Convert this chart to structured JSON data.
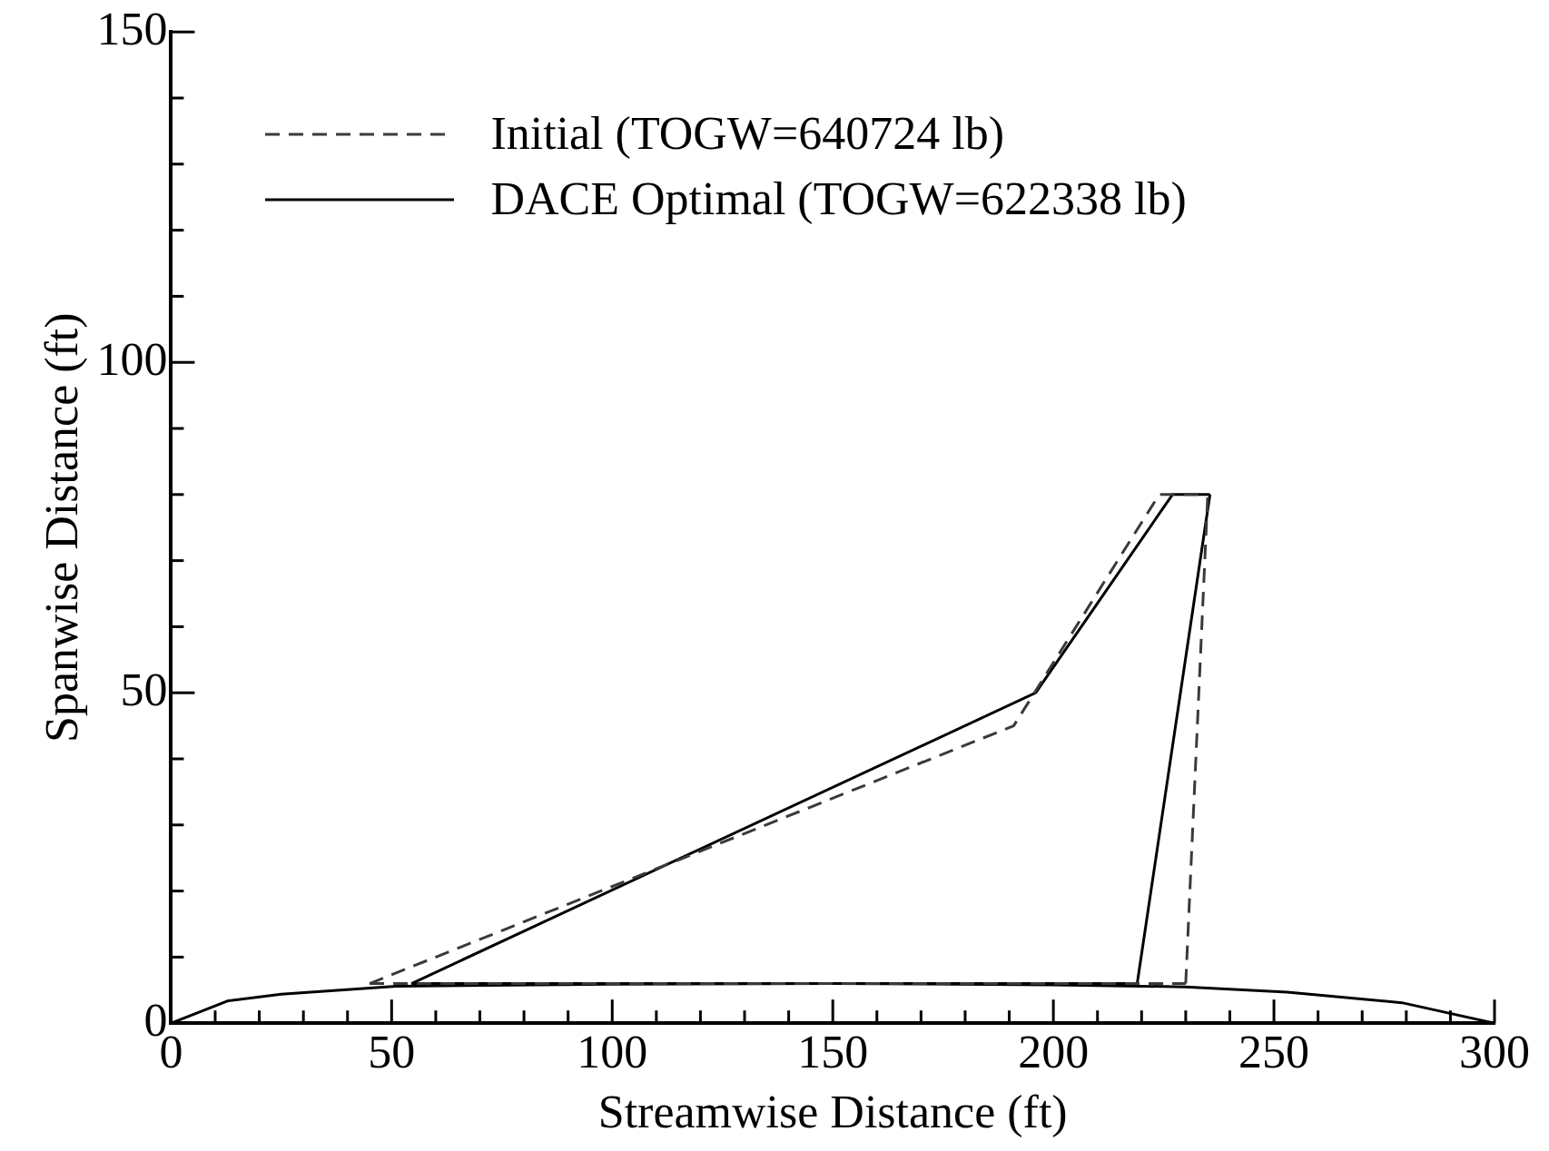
{
  "chart_data": {
    "type": "line",
    "xlabel": "Streamwise Distance (ft)",
    "ylabel": "Spanwise Distance (ft)",
    "xlim": [
      0,
      300
    ],
    "ylim": [
      0,
      150
    ],
    "xticks": [
      0,
      {
        "value": 10,
        "label": null
      },
      {
        "value": 20,
        "label": null
      },
      {
        "value": 30,
        "label": null
      },
      {
        "value": 40,
        "label": null
      },
      50,
      {
        "value": 60,
        "label": null
      },
      {
        "value": 70,
        "label": null
      },
      {
        "value": 80,
        "label": null
      },
      {
        "value": 90,
        "label": null
      },
      100,
      {
        "value": 110,
        "label": null
      },
      {
        "value": 120,
        "label": null
      },
      {
        "value": 130,
        "label": null
      },
      {
        "value": 140,
        "label": null
      },
      150,
      {
        "value": 160,
        "label": null
      },
      {
        "value": 170,
        "label": null
      },
      {
        "value": 180,
        "label": null
      },
      {
        "value": 190,
        "label": null
      },
      200,
      {
        "value": 210,
        "label": null
      },
      {
        "value": 220,
        "label": null
      },
      {
        "value": 230,
        "label": null
      },
      {
        "value": 240,
        "label": null
      },
      250,
      {
        "value": 260,
        "label": null
      },
      {
        "value": 270,
        "label": null
      },
      {
        "value": 280,
        "label": null
      },
      {
        "value": 290,
        "label": null
      },
      300
    ],
    "yticks": [
      0,
      {
        "value": 10,
        "label": null
      },
      {
        "value": 20,
        "label": null
      },
      {
        "value": 30,
        "label": null
      },
      {
        "value": 40,
        "label": null
      },
      50,
      {
        "value": 60,
        "label": null
      },
      {
        "value": 70,
        "label": null
      },
      {
        "value": 80,
        "label": null
      },
      {
        "value": 90,
        "label": null
      },
      100,
      {
        "value": 110,
        "label": null
      },
      {
        "value": 120,
        "label": null
      },
      {
        "value": 130,
        "label": null
      },
      {
        "value": 140,
        "label": null
      },
      150
    ],
    "grid": false,
    "legend": "top left",
    "marker": "none",
    "series": [
      {
        "name": "Initial (TOGW=640724 lb)",
        "color": "#3a3a3a",
        "line_style": "dashed",
        "x": [
          45,
          191,
          224,
          235
        ],
        "values": [
          6,
          45,
          80,
          80
        ]
      },
      {
        "color": "#3a3a3a",
        "line_style": "dashed",
        "x": [
          230,
          235
        ],
        "values": [
          6,
          80
        ]
      },
      {
        "color": "#3a3a3a",
        "line_style": "dashed",
        "x": [
          45,
          230
        ],
        "values": [
          6,
          6
        ]
      },
      {
        "name": "DACE Optimal (TOGW=622338 lb)",
        "color": "#000000",
        "line_style": "solid",
        "x": [
          54.5,
          196,
          227,
          235.5
        ],
        "values": [
          6,
          50,
          80,
          80
        ]
      },
      {
        "color": "#000000",
        "line_style": "solid",
        "x": [
          219,
          235.5
        ],
        "values": [
          6,
          80
        ]
      },
      {
        "color": "#000000",
        "line_style": "solid",
        "x": [
          54.5,
          219
        ],
        "values": [
          6,
          6
        ]
      },
      {
        "color": "#000000",
        "line_style": "solid",
        "x": [
          0,
          13,
          25,
          51,
          100,
          150,
          200,
          230,
          253,
          279,
          300
        ],
        "values": [
          0,
          3.4,
          4.4,
          5.6,
          5.9,
          6,
          5.8,
          5.5,
          4.7,
          3.1,
          0
        ]
      }
    ]
  }
}
